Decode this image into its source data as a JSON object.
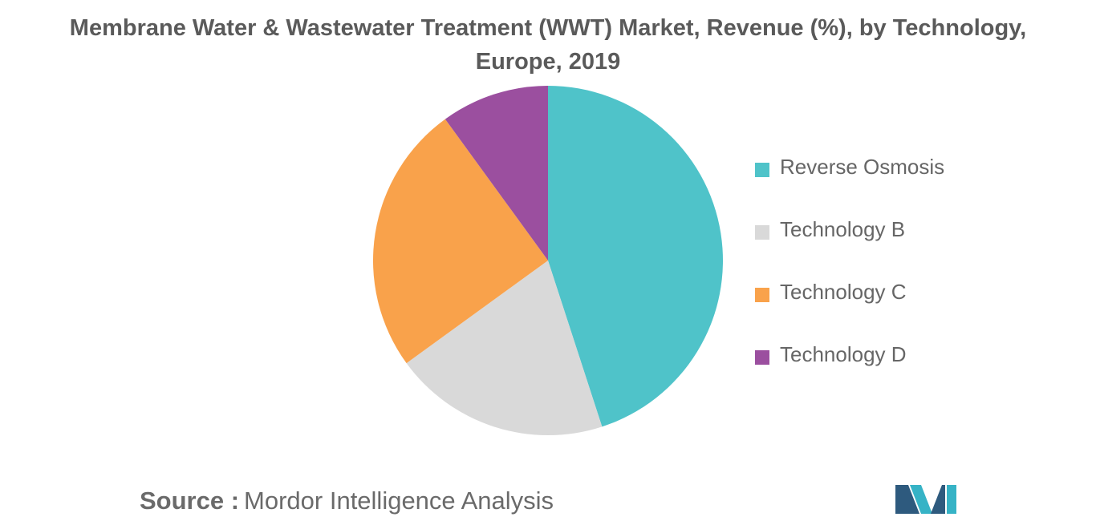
{
  "chart_data": {
    "type": "pie",
    "title_lines": [
      "Membrane Water & Wastewater Treatment (WWT) Market, Revenue (%), by Technology,",
      "Europe, 2019"
    ],
    "slices": [
      {
        "label": "Reverse Osmosis",
        "value": 45,
        "color": "#4fc3c9"
      },
      {
        "label": "Technology B",
        "value": 20,
        "color": "#d9d9d9"
      },
      {
        "label": "Technology C",
        "value": 25,
        "color": "#f9a24b"
      },
      {
        "label": "Technology D",
        "value": 10,
        "color": "#9b4f9f"
      }
    ],
    "start_angle_deg": 0,
    "direction": "clockwise",
    "legend_position": "right"
  },
  "source": {
    "label": "Source :",
    "text": "Mordor Intelligence Analysis"
  },
  "logo": {
    "icon": "mordor-intelligence-logo-icon",
    "colors": [
      "#2e5a7e",
      "#36b3c6"
    ]
  }
}
